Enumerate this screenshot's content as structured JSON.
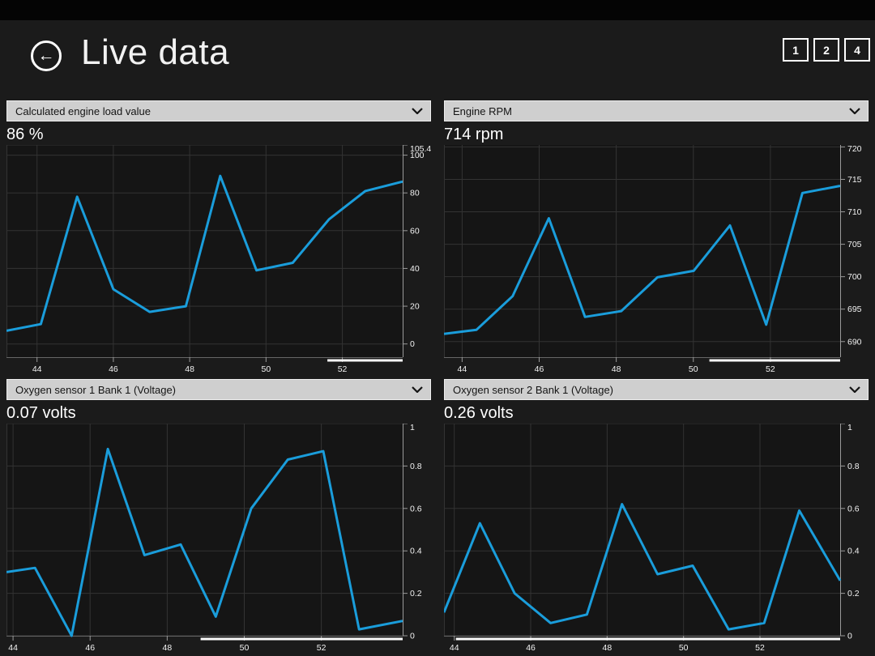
{
  "header": {
    "title": "Live data",
    "back_icon": "←",
    "layout_buttons": [
      "1",
      "2",
      "4"
    ]
  },
  "colors": {
    "accent_line": "#1a9ddb",
    "plot_bg": "#151515",
    "gridline": "#333333",
    "axis": "#9a9a9a",
    "axis_bottom": "#666666",
    "tick_label": "#f2f2f2",
    "scrollbar": "#fafafa"
  },
  "charts": [
    {
      "selector_label": "Calculated engine load value",
      "value_label": "86 %",
      "chart_data": {
        "type": "line",
        "title": "Calculated engine load value",
        "unit": "%",
        "x": [
          43.2,
          44.1,
          45.05,
          46.0,
          46.95,
          47.9,
          48.8,
          49.75,
          50.7,
          51.65,
          52.6,
          53.58
        ],
        "y": [
          7,
          10.5,
          78,
          29,
          17,
          20,
          89,
          39,
          43,
          66,
          81,
          86
        ],
        "x_range": [
          43.2,
          53.58
        ],
        "y_range": [
          -7,
          105.4
        ],
        "x_ticks": [
          44,
          46,
          48,
          50,
          52
        ],
        "x_tick_labels": [
          "44",
          "46",
          "48",
          "50",
          "52"
        ],
        "y_ticks": [
          105.4,
          100,
          80,
          60,
          40,
          20,
          0
        ],
        "y_tick_labels": [
          "105.4",
          "100",
          "80",
          "60",
          "40",
          "20",
          "0"
        ],
        "y_axis_side": "right",
        "grid": true,
        "scrollbar_start_fraction": 0.81
      }
    },
    {
      "selector_label": "Engine RPM",
      "value_label": "714 rpm",
      "chart_data": {
        "type": "line",
        "title": "Engine RPM",
        "unit": "rpm",
        "x": [
          43.53,
          44.37,
          45.31,
          46.25,
          47.19,
          48.13,
          49.07,
          50.01,
          50.95,
          51.89,
          52.83,
          53.81
        ],
        "y": [
          691.2,
          691.8,
          697,
          709,
          693.8,
          694.7,
          699.9,
          700.9,
          707.9,
          692.6,
          712.9,
          714
        ],
        "x_range": [
          43.53,
          53.81
        ],
        "y_range": [
          687.6,
          720.3
        ],
        "x_ticks": [
          44,
          46,
          48,
          50,
          52
        ],
        "x_tick_labels": [
          "44",
          "46",
          "48",
          "50",
          "52"
        ],
        "y_ticks": [
          720,
          715,
          710,
          705,
          700,
          695,
          690
        ],
        "y_tick_labels": [
          "720",
          "715",
          "710",
          "705",
          "700",
          "695",
          "690"
        ],
        "y_axis_side": "right",
        "grid": true,
        "scrollbar_start_fraction": 0.67
      }
    },
    {
      "selector_label": "Oxygen sensor 1 Bank 1 (Voltage)",
      "value_label": "0.07 volts",
      "chart_data": {
        "type": "line",
        "title": "Oxygen sensor 1 Bank 1 (Voltage)",
        "unit": "volts",
        "x": [
          43.83,
          44.57,
          45.52,
          46.46,
          47.41,
          48.35,
          49.26,
          50.18,
          51.13,
          52.05,
          52.98,
          54.11
        ],
        "y": [
          0.3,
          0.32,
          0.0,
          0.88,
          0.38,
          0.43,
          0.09,
          0.6,
          0.83,
          0.87,
          0.03,
          0.07
        ],
        "x_range": [
          43.83,
          54.11
        ],
        "y_range": [
          0,
          1
        ],
        "x_ticks": [
          44,
          46,
          48,
          50,
          52
        ],
        "x_tick_labels": [
          "44",
          "46",
          "48",
          "50",
          "52"
        ],
        "y_ticks": [
          1,
          0.8,
          0.6,
          0.4,
          0.2,
          0
        ],
        "y_tick_labels": [
          "1",
          "0.8",
          "0.6",
          "0.4",
          "0.2",
          "0"
        ],
        "y_axis_side": "right",
        "grid": true,
        "scrollbar_start_fraction": 0.49
      }
    },
    {
      "selector_label": "Oxygen sensor 2 Bank 1 (Voltage)",
      "value_label": "0.26 volts",
      "chart_data": {
        "type": "line",
        "title": "Oxygen sensor 2 Bank 1 (Voltage)",
        "unit": "volts",
        "x": [
          43.73,
          44.67,
          45.58,
          46.52,
          47.47,
          48.39,
          49.32,
          50.24,
          51.18,
          52.11,
          53.03,
          54.1
        ],
        "y": [
          0.11,
          0.53,
          0.2,
          0.06,
          0.1,
          0.62,
          0.29,
          0.33,
          0.03,
          0.06,
          0.59,
          0.26
        ],
        "x_range": [
          43.73,
          54.1
        ],
        "y_range": [
          0,
          1
        ],
        "x_ticks": [
          44,
          46,
          48,
          50,
          52
        ],
        "x_tick_labels": [
          "44",
          "46",
          "48",
          "50",
          "52"
        ],
        "y_ticks": [
          1,
          0.8,
          0.6,
          0.4,
          0.2,
          0
        ],
        "y_tick_labels": [
          "1",
          "0.8",
          "0.6",
          "0.4",
          "0.2",
          "0"
        ],
        "y_axis_side": "right",
        "grid": true,
        "scrollbar_start_fraction": 0.03
      }
    }
  ]
}
